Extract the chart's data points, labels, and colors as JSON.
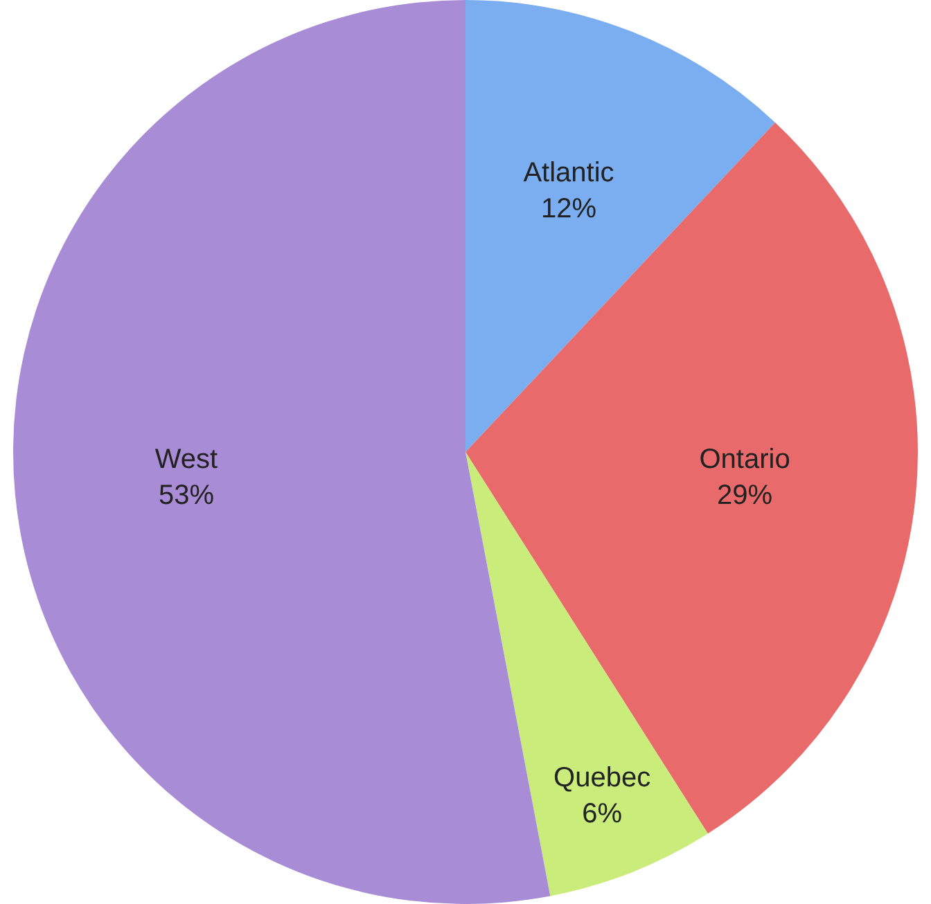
{
  "chart_data": {
    "type": "pie",
    "categories": [
      "Atlantic",
      "Ontario",
      "Quebec",
      "West"
    ],
    "values": [
      12,
      29,
      6,
      53
    ],
    "colors": [
      "#7aaef0",
      "#e96a6a",
      "#c9ec7a",
      "#a98cd6"
    ],
    "value_labels": [
      "12%",
      "29%",
      "6%",
      "53%"
    ],
    "legend": false
  }
}
